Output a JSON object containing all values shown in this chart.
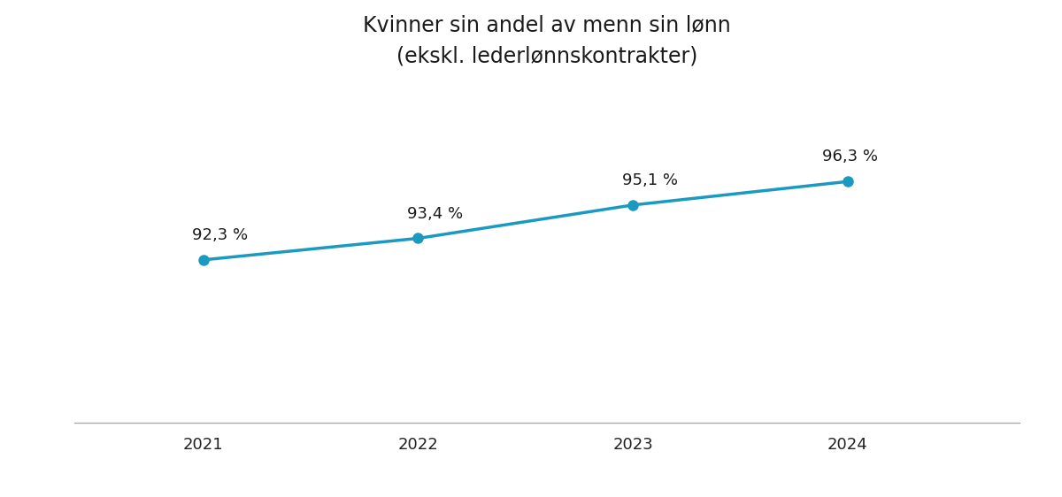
{
  "title_line1": "Kvinner sin andel av menn sin lønn",
  "title_line2": "(ekskl. lederlønnskontrakter)",
  "x": [
    2021,
    2022,
    2023,
    2024
  ],
  "y": [
    92.3,
    93.4,
    95.1,
    96.3
  ],
  "labels": [
    "92,3 %",
    "93,4 %",
    "95,1 %",
    "96,3 %"
  ],
  "line_color": "#1a9ac0",
  "marker_color": "#1a9ac0",
  "marker_size": 8,
  "line_width": 2.5,
  "background_color": "#ffffff",
  "ylim": [
    84,
    101
  ],
  "xlim": [
    2020.4,
    2024.8
  ],
  "title_fontsize": 17,
  "label_fontsize": 13,
  "tick_fontsize": 13
}
